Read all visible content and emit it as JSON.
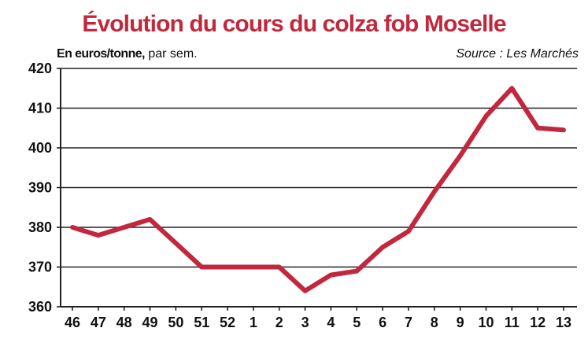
{
  "title": "Évolution du cours du colza fob Moselle",
  "unit_strong": "En euros/tonne,",
  "unit_light": " par sem.",
  "source": "Source : Les Marchés",
  "colors": {
    "title": "#c1283e",
    "line": "#c1283e",
    "axis": "#222222",
    "grid": "#222222"
  },
  "chart_data": {
    "type": "line",
    "title": "Évolution du cours du colza fob Moselle",
    "ylabel": "En euros/tonne, par sem.",
    "xlabel": "",
    "categories": [
      "46",
      "47",
      "48",
      "49",
      "50",
      "51",
      "52",
      "1",
      "2",
      "3",
      "4",
      "5",
      "6",
      "7",
      "8",
      "9",
      "10",
      "11",
      "12",
      "13"
    ],
    "values": [
      380,
      378,
      380,
      382,
      376,
      370,
      370,
      370,
      370,
      364,
      368,
      369,
      375,
      379,
      389,
      398,
      408,
      415,
      405,
      404.5
    ],
    "ylim": [
      360,
      420
    ],
    "yticks": [
      360,
      370,
      380,
      390,
      400,
      410,
      420
    ],
    "grid": true,
    "legend": "none"
  }
}
